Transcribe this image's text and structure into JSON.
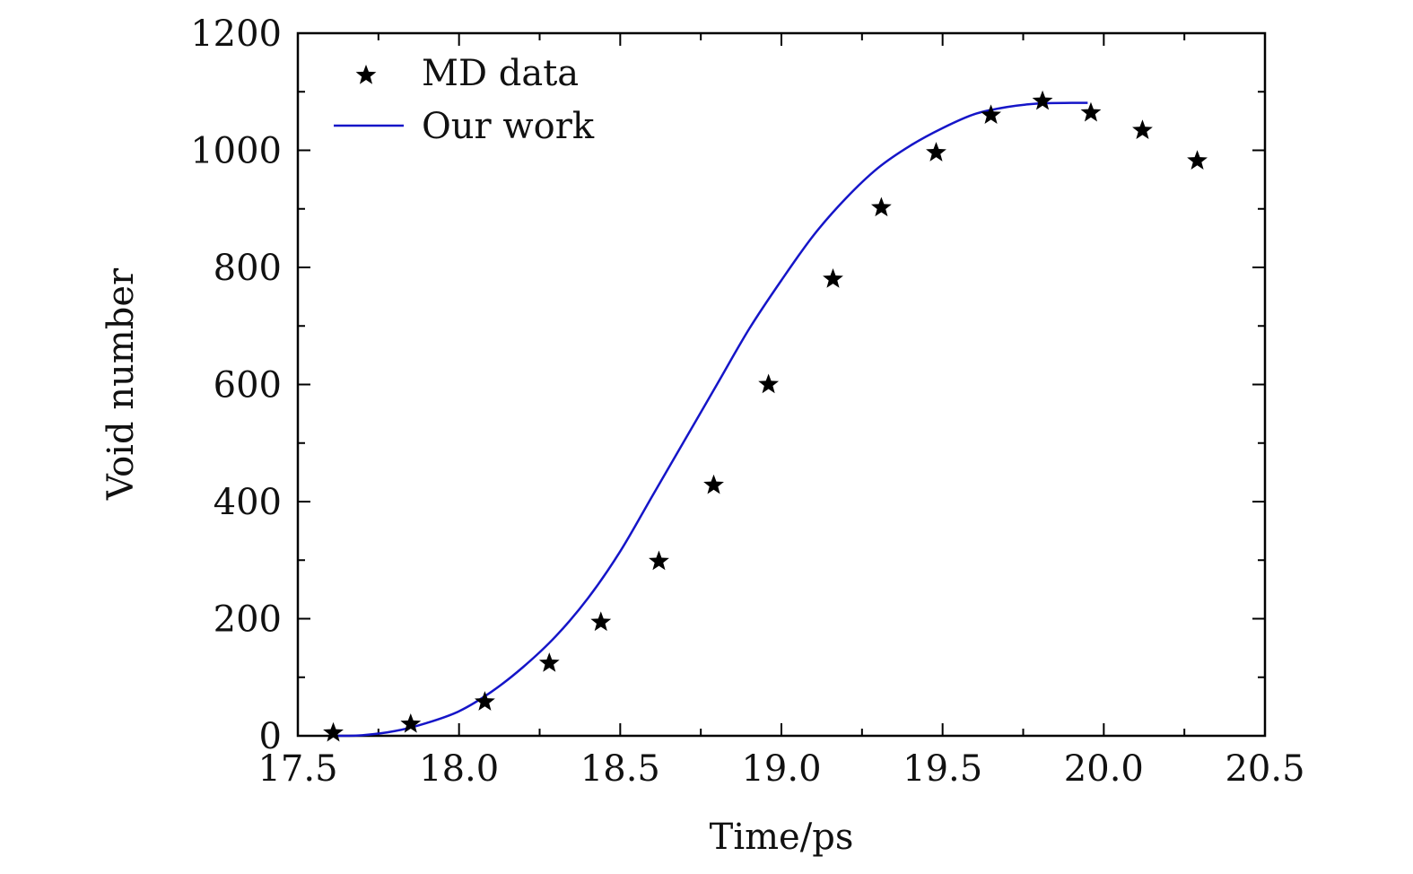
{
  "chart_data": {
    "type": "scatter",
    "title": "",
    "xlabel": "Time/ps",
    "ylabel": "Void number",
    "xlim": [
      17.5,
      20.5
    ],
    "ylim": [
      0,
      1200
    ],
    "x_ticks": [
      17.5,
      18.0,
      18.5,
      19.0,
      19.5,
      20.0,
      20.5
    ],
    "x_tick_labels": [
      "17.5",
      "18.0",
      "18.5",
      "19.0",
      "19.5",
      "20.0",
      "20.5"
    ],
    "y_ticks": [
      0,
      200,
      400,
      600,
      800,
      1000,
      1200
    ],
    "y_tick_labels": [
      "0",
      "200",
      "400",
      "600",
      "800",
      "1000",
      "1200"
    ],
    "grid": false,
    "legend_position": "top-left",
    "series": [
      {
        "name": "MD data",
        "kind": "scatter",
        "marker": "star",
        "color": "#000000",
        "x": [
          17.61,
          17.85,
          18.08,
          18.28,
          18.44,
          18.62,
          18.79,
          18.96,
          19.16,
          19.31,
          19.48,
          19.65,
          19.81,
          19.96,
          20.12,
          20.29
        ],
        "y": [
          5,
          20,
          58,
          124,
          194,
          298,
          428,
          600,
          780,
          902,
          996,
          1060,
          1084,
          1064,
          1034,
          982
        ]
      },
      {
        "name": "Our work",
        "kind": "line",
        "color": "#1515c8",
        "x": [
          17.62,
          17.7,
          17.8,
          17.9,
          18.0,
          18.1,
          18.2,
          18.3,
          18.4,
          18.5,
          18.6,
          18.7,
          18.8,
          18.9,
          19.0,
          19.1,
          19.2,
          19.3,
          19.4,
          19.5,
          19.6,
          19.7,
          19.8,
          19.9,
          19.95
        ],
        "y": [
          0,
          1,
          8,
          22,
          42,
          75,
          118,
          170,
          235,
          315,
          410,
          505,
          600,
          695,
          778,
          855,
          918,
          970,
          1008,
          1038,
          1062,
          1074,
          1080,
          1081,
          1081
        ]
      }
    ]
  }
}
